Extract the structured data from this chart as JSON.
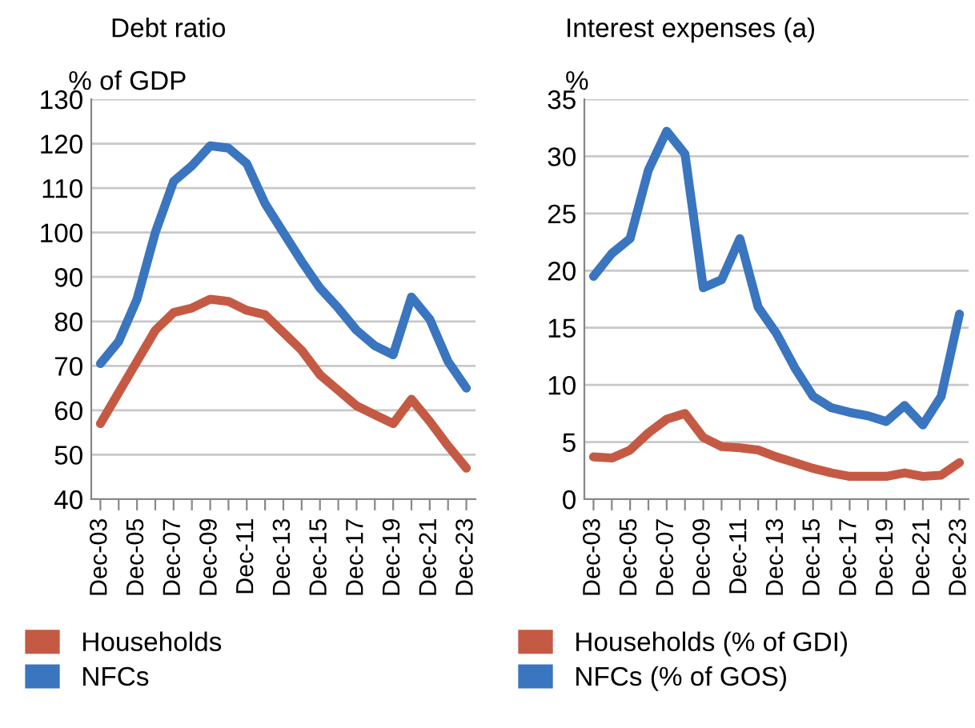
{
  "chart_data": [
    {
      "type": "line",
      "title": "Debt ratio",
      "ylabel": "% of GDP",
      "categories": [
        "Dec-03",
        null,
        "Dec-05",
        null,
        "Dec-07",
        null,
        "Dec-09",
        null,
        "Dec-11",
        null,
        "Dec-13",
        null,
        "Dec-15",
        null,
        "Dec-17",
        null,
        "Dec-19",
        null,
        "Dec-21",
        null,
        "Dec-23"
      ],
      "series": [
        {
          "name": "Households",
          "color": "#c55a44",
          "values": [
            57,
            64,
            71,
            78,
            82,
            83,
            85,
            84.5,
            82.5,
            81.5,
            77.5,
            73.5,
            68,
            64.5,
            61,
            59,
            57,
            62.5,
            57.5,
            52,
            47
          ]
        },
        {
          "name": "NFCs",
          "color": "#3a75bf",
          "values": [
            70.5,
            75.5,
            85,
            100,
            111.5,
            115,
            119.5,
            119,
            115.5,
            106.5,
            100,
            93.5,
            87.5,
            83,
            78,
            74.5,
            72.5,
            85.5,
            80.5,
            71,
            65
          ]
        }
      ],
      "ylim": [
        40,
        130
      ],
      "yticks": [
        40,
        50,
        60,
        70,
        80,
        90,
        100,
        110,
        120,
        130
      ],
      "grid": "y",
      "legend": "bottom",
      "marker": "none",
      "line_style": "solid"
    },
    {
      "type": "line",
      "title": "Interest expenses (a)",
      "ylabel": "%",
      "categories": [
        "Dec-03",
        null,
        "Dec-05",
        null,
        "Dec-07",
        null,
        "Dec-09",
        null,
        "Dec-11",
        null,
        "Dec-13",
        null,
        "Dec-15",
        null,
        "Dec-17",
        null,
        "Dec-19",
        null,
        "Dec-21",
        null,
        "Dec-23"
      ],
      "series": [
        {
          "name": "Households (% of GDI)",
          "color": "#c55a44",
          "values": [
            3.7,
            3.6,
            4.3,
            5.8,
            7,
            7.5,
            5.4,
            4.6,
            4.5,
            4.3,
            3.7,
            3.2,
            2.7,
            2.3,
            2.0,
            2.0,
            2.0,
            2.3,
            2.0,
            2.1,
            3.2
          ]
        },
        {
          "name": "NFCs (% of GOS)",
          "color": "#3a75bf",
          "values": [
            19.5,
            21.5,
            22.8,
            28.8,
            32.2,
            30.2,
            18.5,
            19.2,
            22.8,
            16.8,
            14.5,
            11.5,
            9,
            8,
            7.6,
            7.3,
            6.8,
            8.2,
            6.5,
            9,
            16.2
          ]
        }
      ],
      "ylim": [
        0,
        35
      ],
      "yticks": [
        0,
        5,
        10,
        15,
        20,
        25,
        30,
        35
      ],
      "grid": "y",
      "legend": "bottom",
      "marker": "none",
      "line_style": "solid"
    }
  ]
}
